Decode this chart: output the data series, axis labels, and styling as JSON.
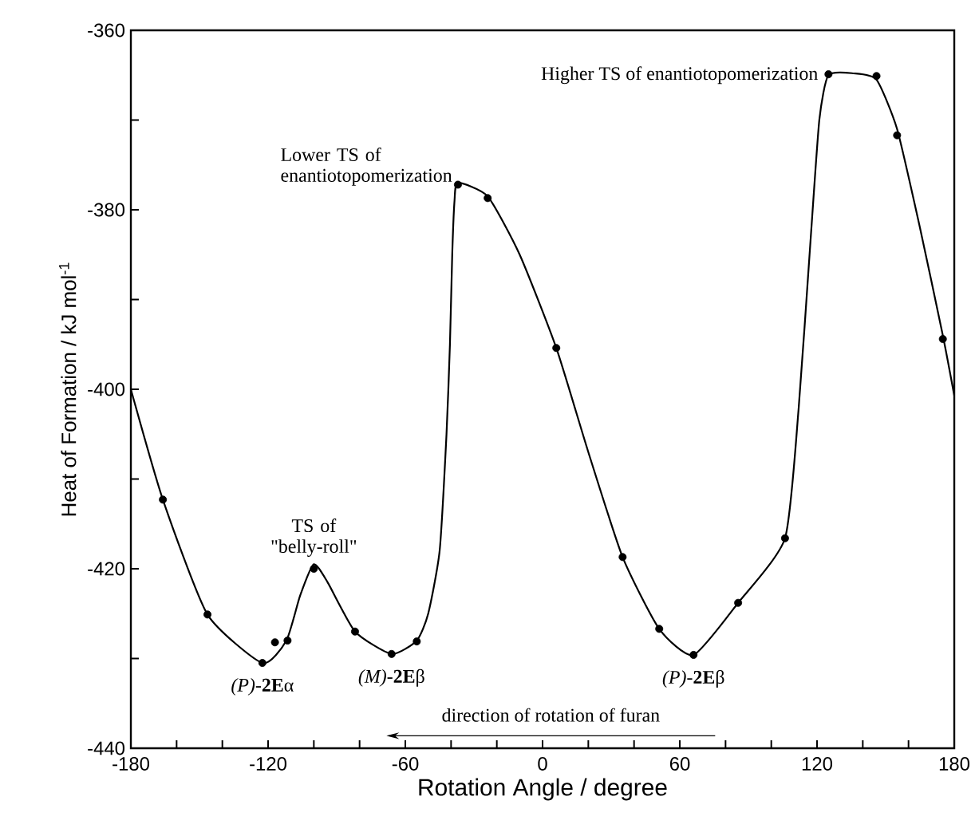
{
  "chart_data": {
    "type": "scatter",
    "xlabel": "Rotation Angle / degree",
    "ylabel": "Heat of Formation / kJ mol$^{-1}$",
    "xlim": [
      -180,
      180
    ],
    "ylim": [
      -440,
      -360
    ],
    "xticks": [
      -180,
      {
        "value": -160,
        "label": null
      },
      {
        "value": -140,
        "label": null
      },
      -120,
      {
        "value": -100,
        "label": null
      },
      {
        "value": -80,
        "label": null
      },
      -60,
      {
        "value": -40,
        "label": null
      },
      {
        "value": -20,
        "label": null
      },
      0,
      {
        "value": 20,
        "label": null
      },
      {
        "value": 40,
        "label": null
      },
      60,
      {
        "value": 80,
        "label": null
      },
      {
        "value": 100,
        "label": null
      },
      120,
      {
        "value": 140,
        "label": null
      },
      {
        "value": 160,
        "label": null
      },
      180
    ],
    "yticks": [
      -440,
      {
        "value": -430,
        "label": null
      },
      -420,
      {
        "value": -410,
        "label": null
      },
      -400,
      {
        "value": -390,
        "label": null
      },
      -380,
      {
        "value": -370,
        "label": null
      },
      -360
    ],
    "series": [
      {
        "type": "scatter",
        "color": "#000000",
        "marker": "circle",
        "x": [
          -166,
          -146.5,
          -122.5,
          -117,
          -111.5,
          -100,
          -82,
          -66,
          -55,
          -37,
          -24,
          6,
          35,
          51,
          66,
          85.5,
          106,
          125,
          146,
          155,
          175
        ],
        "values": [
          -412.3,
          -425.1,
          -430.5,
          -428.2,
          -428,
          -420,
          -427,
          -429.5,
          -428.1,
          -377.2,
          -378.7,
          -395.4,
          -418.7,
          -426.7,
          -429.6,
          -423.8,
          -416.6,
          -364.9,
          -365.1,
          -371.7,
          -394.4
        ]
      },
      {
        "type": "line",
        "color": "#000000",
        "marker": "none",
        "line_style": "solid",
        "x": [
          -180,
          -166,
          -146.5,
          -122.5,
          -112,
          -106,
          -100,
          -94,
          -82,
          -66,
          -55,
          -50,
          -45,
          -42,
          -40.5,
          -39.5,
          -38.5,
          -37,
          -24,
          -10,
          6,
          20,
          35,
          51,
          66,
          85.5,
          106,
          112,
          117,
          121,
          125,
          136,
          146,
          155,
          165,
          175,
          180
        ],
        "values": [
          -400,
          -412.3,
          -425.1,
          -430.5,
          -428,
          -423,
          -419.5,
          -421.5,
          -427,
          -429.5,
          -428,
          -425,
          -418,
          -405,
          -395,
          -385,
          -379,
          -377,
          -378.5,
          -385,
          -395.4,
          -407,
          -418.7,
          -426.7,
          -429.6,
          -423.8,
          -416.6,
          -402,
          -384,
          -370,
          -365,
          -364.8,
          -365.5,
          -371,
          -382,
          -394,
          -400.7
        ]
      }
    ],
    "annotations": [
      {
        "text": "Lower TS of enantiotopomerization",
        "x": -37,
        "y": -377
      },
      {
        "text": "Higher TS of enantiotopomerization",
        "x": 125,
        "y": -365
      },
      {
        "text": "TS of \"belly-roll\"",
        "x": -100,
        "y": -420
      },
      {
        "text": "*(P)*-**2E**α",
        "x": -122.5,
        "y": -430.5
      },
      {
        "text": "*(M)*-**2E**β",
        "x": -66,
        "y": -429.5
      },
      {
        "text": "*(P)*-**2E**β",
        "x": 66,
        "y": -429.6
      },
      "direction of rotation of furan"
    ]
  }
}
